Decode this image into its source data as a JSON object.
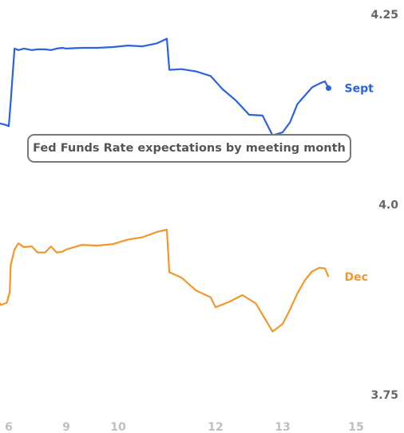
{
  "chart_data": {
    "type": "line",
    "title": "Fed Funds Rate expectations by meeting month",
    "ylim": [
      3.75,
      4.25
    ],
    "y_ticks": [
      {
        "value": 4.25,
        "label": "4.25"
      },
      {
        "value": 4.0,
        "label": "4.0"
      },
      {
        "value": 3.75,
        "label": "3.75"
      }
    ],
    "x_ticks": [
      {
        "value": 6,
        "label": "6"
      },
      {
        "value": 9,
        "label": "9"
      },
      {
        "value": 10,
        "label": "10"
      },
      {
        "value": 12,
        "label": "12"
      },
      {
        "value": 13,
        "label": "13"
      },
      {
        "value": 15,
        "label": "15"
      }
    ],
    "grid": false,
    "series": [
      {
        "name": "Sept",
        "color": "#2a62e0",
        "x": [
          5.3,
          5.8,
          6.0,
          6.1,
          6.3,
          6.5,
          6.8,
          7.2,
          7.5,
          7.9,
          8.2,
          8.5,
          8.8,
          9.0,
          9.3,
          9.6,
          9.9,
          10.2,
          10.5,
          10.8,
          11.0,
          11.05,
          11.3,
          11.6,
          11.9,
          12.1,
          12.3,
          12.5,
          12.7,
          12.85,
          13.0,
          13.2,
          13.4,
          13.6,
          13.8,
          14.0,
          14.15,
          14.25
        ],
        "values": [
          4.108,
          4.105,
          4.103,
          4.135,
          4.205,
          4.203,
          4.205,
          4.203,
          4.204,
          4.204,
          4.203,
          4.205,
          4.206,
          4.205,
          4.206,
          4.206,
          4.207,
          4.209,
          4.208,
          4.212,
          4.218,
          4.177,
          4.178,
          4.175,
          4.169,
          4.152,
          4.137,
          4.118,
          4.117,
          4.091,
          4.095,
          4.108,
          4.132,
          4.143,
          4.154,
          4.159,
          4.162,
          4.153
        ]
      },
      {
        "name": "Dec",
        "color": "#f5962a",
        "x": [
          5.3,
          5.6,
          5.9,
          6.05,
          6.1,
          6.3,
          6.5,
          6.8,
          7.2,
          7.5,
          7.9,
          8.2,
          8.5,
          8.8,
          9.0,
          9.3,
          9.6,
          9.9,
          10.2,
          10.5,
          10.8,
          11.0,
          11.05,
          11.3,
          11.6,
          11.9,
          12.0,
          12.2,
          12.4,
          12.6,
          12.85,
          13.0,
          13.2,
          13.4,
          13.6,
          13.8,
          14.0,
          14.15,
          14.25
        ],
        "values": [
          3.878,
          3.868,
          3.871,
          3.885,
          3.92,
          3.941,
          3.949,
          3.944,
          3.945,
          3.937,
          3.937,
          3.945,
          3.937,
          3.938,
          3.941,
          3.947,
          3.946,
          3.948,
          3.954,
          3.957,
          3.964,
          3.967,
          3.911,
          3.904,
          3.887,
          3.878,
          3.865,
          3.872,
          3.881,
          3.87,
          3.833,
          3.843,
          3.862,
          3.883,
          3.9,
          3.912,
          3.917,
          3.916,
          3.905
        ]
      }
    ]
  }
}
